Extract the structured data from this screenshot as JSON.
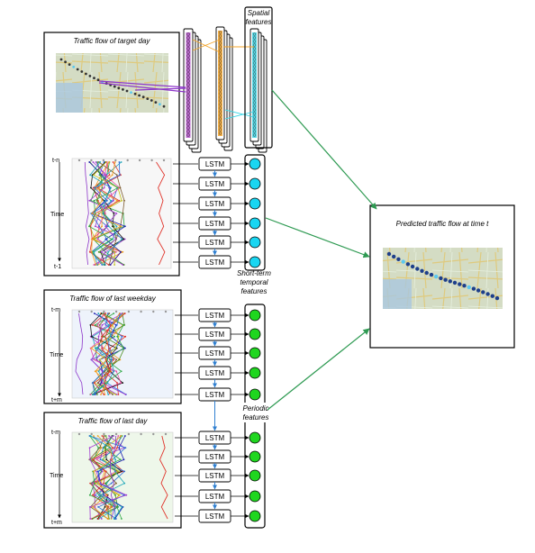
{
  "panels": {
    "target_day": {
      "title": "Traffic flow of target day",
      "t_top": "t-n",
      "t_mid": "Time",
      "t_bottom": "t-1"
    },
    "last_weekday": {
      "title": "Traffic flow of last weekday",
      "t_top": "t-m",
      "t_mid": "Time",
      "t_bottom": "t+m"
    },
    "last_day": {
      "title": "Traffic flow of last day",
      "t_top": "t-m",
      "t_mid": "Time",
      "t_bottom": "t+m"
    },
    "prediction": {
      "title": "Predicted traffic flow at time t"
    }
  },
  "feature_labels": {
    "spatial": [
      "Spatial",
      "features"
    ],
    "short_term": [
      "Short-term",
      "temporal",
      "features"
    ],
    "periodic": [
      "Periodic",
      "features"
    ]
  },
  "lstm_label": "LSTM",
  "colors": {
    "arrow_green": "#2e9a52",
    "arrow_blue": "#2f7fd0",
    "node_cyan": "#19d6f2",
    "node_green": "#1fd61f",
    "cnn_purple": "#b14fc8",
    "cnn_orange": "#f4a429",
    "cnn_cyan": "#3ad6e6",
    "map_green": "#b7d4a4",
    "map_bg": "#e6e2d8"
  }
}
